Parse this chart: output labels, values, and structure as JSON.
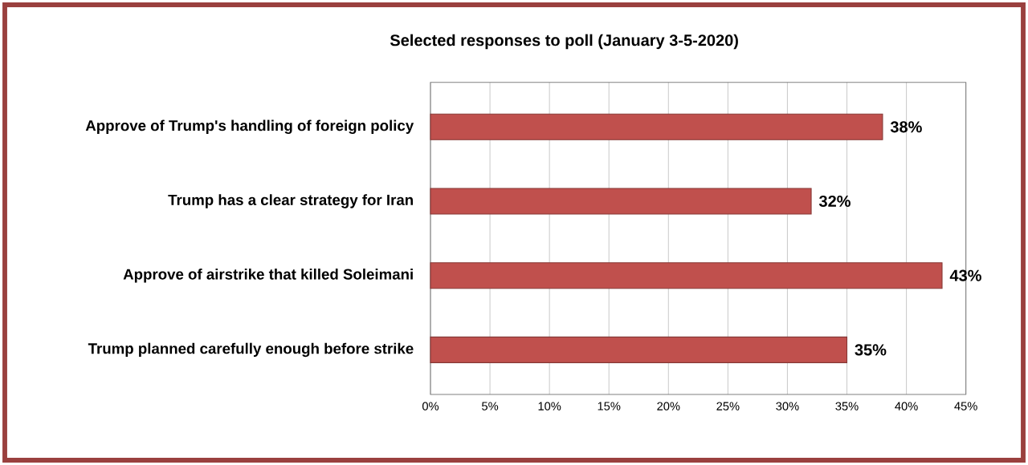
{
  "chart_data": {
    "type": "bar",
    "orientation": "horizontal",
    "title": "Selected responses to poll (January 3-5-2020)",
    "categories": [
      "Approve of Trump's handling of foreign policy",
      "Trump has a clear strategy for Iran",
      "Approve of airstrike that killed Soleimani",
      "Trump planned carefully enough before strike"
    ],
    "values": [
      38,
      32,
      43,
      35
    ],
    "value_labels": [
      "38%",
      "32%",
      "43%",
      "35%"
    ],
    "color": "#c0504d",
    "xlim": [
      0,
      45
    ],
    "xticks": [
      {
        "value": 0,
        "label": "0%"
      },
      {
        "value": 5,
        "label": "5%"
      },
      {
        "value": 10,
        "label": "10%"
      },
      {
        "value": 15,
        "label": "15%"
      },
      {
        "value": 20,
        "label": "20%"
      },
      {
        "value": 25,
        "label": "25%"
      },
      {
        "value": 30,
        "label": "30%"
      },
      {
        "value": 35,
        "label": "35%"
      },
      {
        "value": 40,
        "label": "40%"
      },
      {
        "value": 45,
        "label": "45%"
      }
    ],
    "grid": "x"
  }
}
